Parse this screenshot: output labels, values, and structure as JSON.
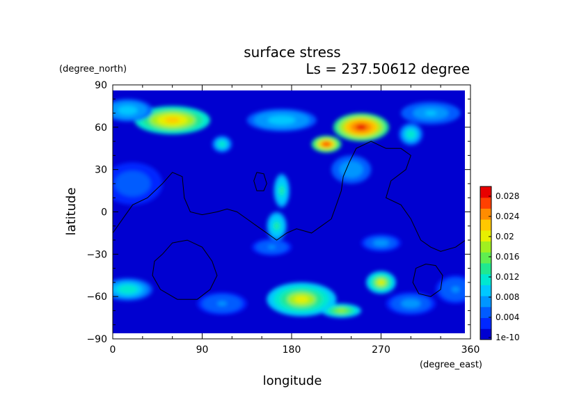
{
  "chart_data": {
    "type": "heatmap",
    "title": "surface stress",
    "subtitle": "Ls = 237.50612 degree",
    "xlabel": "longitude",
    "ylabel": "latitude",
    "x_unit": "(degree_east)",
    "y_unit": "(degree_north)",
    "xlim": [
      0,
      360
    ],
    "ylim": [
      -90,
      90
    ],
    "x_ticks": [
      "0",
      "90",
      "180",
      "270",
      "360"
    ],
    "y_ticks": [
      "90",
      "60",
      "30",
      "0",
      "−30",
      "−60",
      "−90"
    ],
    "colorbar": {
      "min": 0,
      "max": 0.03,
      "tick_labels": [
        "0.028",
        "0.024",
        "0.02",
        "0.016",
        "0.012",
        "0.008",
        "0.004",
        "1e-10"
      ],
      "colors": [
        "#0000d0",
        "#0028ff",
        "#005cff",
        "#0096ff",
        "#00c8ff",
        "#00e8d0",
        "#20e890",
        "#60ee50",
        "#a0f020",
        "#e8f000",
        "#ffc800",
        "#ff8c00",
        "#ff4000",
        "#e80000"
      ]
    },
    "hotspots": [
      {
        "lon": 60,
        "lat": 65,
        "value": 0.024,
        "rx": 38,
        "ry": 10
      },
      {
        "lon": 15,
        "lat": 72,
        "value": 0.01,
        "rx": 25,
        "ry": 8
      },
      {
        "lon": 320,
        "lat": 70,
        "value": 0.009,
        "rx": 30,
        "ry": 8
      },
      {
        "lon": 250,
        "lat": 60,
        "value": 0.03,
        "rx": 28,
        "ry": 10
      },
      {
        "lon": 215,
        "lat": 48,
        "value": 0.028,
        "rx": 15,
        "ry": 6
      },
      {
        "lon": 170,
        "lat": 65,
        "value": 0.01,
        "rx": 35,
        "ry": 8
      },
      {
        "lon": 300,
        "lat": 55,
        "value": 0.012,
        "rx": 12,
        "ry": 8
      },
      {
        "lon": 110,
        "lat": 48,
        "value": 0.012,
        "rx": 10,
        "ry": 6
      },
      {
        "lon": 240,
        "lat": 30,
        "value": 0.008,
        "rx": 20,
        "ry": 10
      },
      {
        "lon": 170,
        "lat": 15,
        "value": 0.014,
        "rx": 8,
        "ry": 12
      },
      {
        "lon": 165,
        "lat": -10,
        "value": 0.014,
        "rx": 10,
        "ry": 10
      },
      {
        "lon": 160,
        "lat": -25,
        "value": 0.006,
        "rx": 20,
        "ry": 6
      },
      {
        "lon": 20,
        "lat": 20,
        "value": 0.005,
        "rx": 30,
        "ry": 15
      },
      {
        "lon": 270,
        "lat": -22,
        "value": 0.007,
        "rx": 20,
        "ry": 6
      },
      {
        "lon": 190,
        "lat": -62,
        "value": 0.02,
        "rx": 35,
        "ry": 12
      },
      {
        "lon": 270,
        "lat": -50,
        "value": 0.02,
        "rx": 15,
        "ry": 8
      },
      {
        "lon": 230,
        "lat": -70,
        "value": 0.018,
        "rx": 20,
        "ry": 5
      },
      {
        "lon": 15,
        "lat": -55,
        "value": 0.012,
        "rx": 25,
        "ry": 8
      },
      {
        "lon": 110,
        "lat": -65,
        "value": 0.006,
        "rx": 25,
        "ry": 8
      },
      {
        "lon": 300,
        "lat": -65,
        "value": 0.007,
        "rx": 25,
        "ry": 8
      },
      {
        "lon": 345,
        "lat": -55,
        "value": 0.006,
        "rx": 20,
        "ry": 10
      }
    ],
    "contours": [
      [
        [
          0,
          -15
        ],
        [
          10,
          -5
        ],
        [
          20,
          5
        ],
        [
          35,
          10
        ],
        [
          50,
          20
        ],
        [
          60,
          28
        ],
        [
          70,
          25
        ],
        [
          72,
          10
        ],
        [
          78,
          0
        ],
        [
          90,
          -2
        ],
        [
          105,
          0
        ],
        [
          115,
          2
        ],
        [
          125,
          0
        ],
        [
          135,
          -5
        ],
        [
          145,
          -10
        ],
        [
          155,
          -15
        ],
        [
          165,
          -20
        ],
        [
          175,
          -15
        ],
        [
          185,
          -12
        ],
        [
          200,
          -15
        ],
        [
          210,
          -10
        ],
        [
          220,
          -5
        ],
        [
          225,
          5
        ],
        [
          230,
          15
        ],
        [
          232,
          25
        ],
        [
          238,
          35
        ],
        [
          245,
          45
        ],
        [
          260,
          50
        ],
        [
          275,
          45
        ],
        [
          290,
          45
        ],
        [
          300,
          40
        ],
        [
          295,
          30
        ],
        [
          280,
          22
        ],
        [
          275,
          10
        ],
        [
          290,
          5
        ],
        [
          300,
          -5
        ],
        [
          310,
          -20
        ],
        [
          320,
          -25
        ],
        [
          330,
          -28
        ],
        [
          345,
          -25
        ],
        [
          355,
          -20
        ],
        [
          360,
          -18
        ]
      ],
      [
        [
          50,
          -30
        ],
        [
          60,
          -22
        ],
        [
          75,
          -20
        ],
        [
          90,
          -25
        ],
        [
          100,
          -35
        ],
        [
          105,
          -45
        ],
        [
          98,
          -55
        ],
        [
          85,
          -62
        ],
        [
          65,
          -62
        ],
        [
          48,
          -55
        ],
        [
          40,
          -45
        ],
        [
          42,
          -35
        ],
        [
          50,
          -30
        ]
      ],
      [
        [
          305,
          -40
        ],
        [
          315,
          -37
        ],
        [
          325,
          -38
        ],
        [
          332,
          -45
        ],
        [
          330,
          -55
        ],
        [
          320,
          -60
        ],
        [
          308,
          -58
        ],
        [
          302,
          -50
        ],
        [
          305,
          -40
        ]
      ],
      [
        [
          145,
          28
        ],
        [
          152,
          27
        ],
        [
          155,
          20
        ],
        [
          152,
          15
        ],
        [
          145,
          15
        ],
        [
          142,
          22
        ],
        [
          145,
          28
        ]
      ]
    ]
  }
}
